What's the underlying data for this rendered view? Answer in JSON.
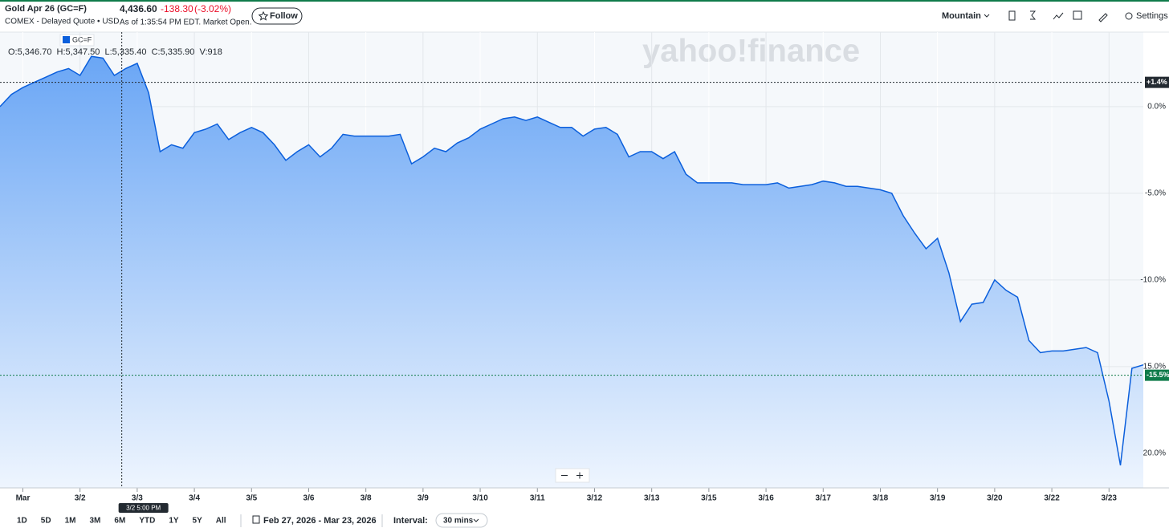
{
  "header": {
    "title": "Gold Apr 26 (GC=F)",
    "subtitle": "COMEX - Delayed Quote • USD",
    "price": "4,436.60",
    "change": "-138.30",
    "change_percent": "(-3.02%)",
    "as_of": "As of 1:35:54 PM EDT. Market Open.",
    "follow": "Follow",
    "chart_style": "Mountain",
    "settings": "Settings"
  },
  "legend_symbol": "GC=F",
  "ohlc": "O:5,346.70  H:5,347.50  L:5,335.40  C:5,335.90  V:918",
  "watermark": "yahoo!finance",
  "chart_data": {
    "type": "area",
    "color": "#0b5fdc",
    "grid": true,
    "xlim": [
      0,
      200
    ],
    "ylim": [
      -22,
      4.3
    ],
    "xticks": [
      {
        "value": 4,
        "label": "Mar"
      },
      {
        "value": 14,
        "label": "3/2"
      },
      {
        "value": 24,
        "label": "3/3"
      },
      {
        "value": 34,
        "label": "3/4"
      },
      {
        "value": 44,
        "label": "3/5"
      },
      {
        "value": 54,
        "label": "3/6"
      },
      {
        "value": 64,
        "label": "3/8"
      },
      {
        "value": 74,
        "label": "3/9"
      },
      {
        "value": 84,
        "label": "3/10"
      },
      {
        "value": 94,
        "label": "3/11"
      },
      {
        "value": 104,
        "label": "3/12"
      },
      {
        "value": 114,
        "label": "3/13"
      },
      {
        "value": 124,
        "label": "3/15"
      },
      {
        "value": 134,
        "label": "3/16"
      },
      {
        "value": 144,
        "label": "3/17"
      },
      {
        "value": 154,
        "label": "3/18"
      },
      {
        "value": 164,
        "label": "3/19"
      },
      {
        "value": 174,
        "label": "3/20"
      },
      {
        "value": 184,
        "label": "3/22"
      },
      {
        "value": 194,
        "label": "3/23"
      }
    ],
    "yticks": [
      {
        "value": 0,
        "label": "0.0%"
      },
      {
        "value": -5,
        "label": "-5.0%"
      },
      {
        "value": -10,
        "label": "-10.0%"
      },
      {
        "value": -15,
        "label": "-15.0%"
      },
      {
        "value": -20,
        "label": "-20.0%"
      }
    ],
    "reference_lines": [
      {
        "value": 1.4,
        "label": "+1.4%",
        "color": "#232a31"
      },
      {
        "value": -15.5,
        "label": "-15.5%",
        "color": "#0f7b4a"
      }
    ],
    "crosshair": {
      "value": 21.3,
      "label": "3/2 5:00 PM"
    },
    "x": [
      0,
      2,
      4,
      6,
      8,
      10,
      12,
      14,
      16,
      18,
      20,
      22,
      24,
      26,
      28,
      30,
      32,
      34,
      36,
      38,
      40,
      42,
      44,
      46,
      48,
      50,
      52,
      54,
      56,
      58,
      60,
      62,
      64,
      66,
      68,
      70,
      72,
      74,
      76,
      78,
      80,
      82,
      84,
      86,
      88,
      90,
      92,
      94,
      96,
      98,
      100,
      102,
      104,
      106,
      108,
      110,
      112,
      114,
      116,
      118,
      120,
      122,
      124,
      126,
      128,
      130,
      132,
      134,
      136,
      138,
      140,
      142,
      144,
      146,
      148,
      150,
      152,
      154,
      156,
      158,
      160,
      162,
      164,
      166,
      168,
      170,
      172,
      174,
      176,
      178,
      180,
      182,
      184,
      186,
      188,
      190,
      192,
      194,
      196,
      198,
      200
    ],
    "values": [
      0.0,
      0.7,
      1.1,
      1.4,
      1.7,
      2.0,
      2.2,
      1.8,
      2.9,
      2.8,
      1.8,
      2.2,
      2.5,
      0.8,
      -2.6,
      -2.2,
      -2.4,
      -1.5,
      -1.3,
      -1.0,
      -1.9,
      -1.5,
      -1.2,
      -1.5,
      -2.2,
      -3.1,
      -2.6,
      -2.2,
      -2.9,
      -2.4,
      -1.6,
      -1.7,
      -1.7,
      -1.7,
      -1.7,
      -1.6,
      -3.3,
      -2.9,
      -2.4,
      -2.6,
      -2.1,
      -1.8,
      -1.3,
      -1.0,
      -0.7,
      -0.6,
      -0.8,
      -0.6,
      -0.9,
      -1.2,
      -1.2,
      -1.7,
      -1.3,
      -1.2,
      -1.6,
      -2.9,
      -2.6,
      -2.6,
      -3.0,
      -2.6,
      -3.9,
      -4.4,
      -4.4,
      -4.4,
      -4.4,
      -4.5,
      -4.5,
      -4.5,
      -4.4,
      -4.7,
      -4.6,
      -4.5,
      -4.3,
      -4.4,
      -4.6,
      -4.6,
      -4.7,
      -4.8,
      -5.0,
      -6.3,
      -7.3,
      -8.2,
      -7.6,
      -9.6,
      -12.4,
      -11.4,
      -11.3,
      -10.0,
      -10.6,
      -11.0,
      -13.5,
      -14.2,
      -14.1,
      -14.1,
      -14.0,
      -13.9,
      -14.2,
      -17.0,
      -20.7,
      -15.1,
      -14.9
    ]
  },
  "ranges": [
    "1D",
    "5D",
    "1M",
    "3M",
    "6M",
    "YTD",
    "1Y",
    "5Y",
    "All"
  ],
  "date_range": "Feb 27, 2026 - Mar 23, 2026",
  "interval_label": "Interval:",
  "interval": "30 mins"
}
